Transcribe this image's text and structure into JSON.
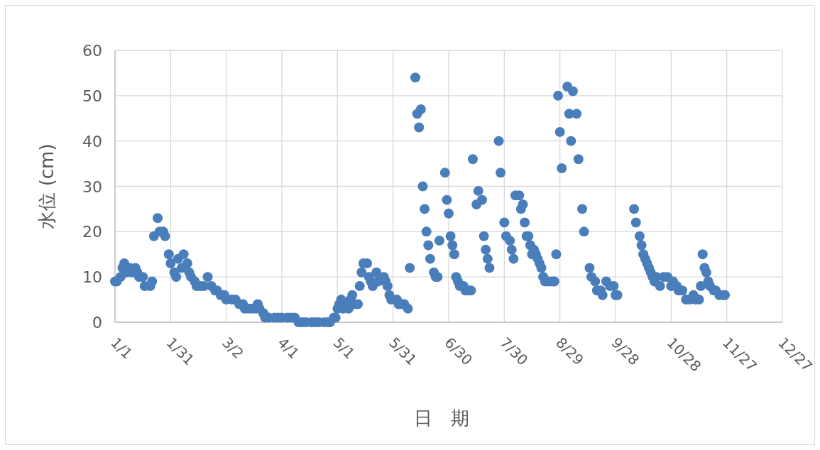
{
  "chart_data": {
    "type": "scatter",
    "xlabel": "日　期",
    "ylabel": "水位 (cm)",
    "marker": "circle",
    "grid": true,
    "xlim": [
      "--01-01",
      "--12-27"
    ],
    "xticks": [
      {
        "value": "--01-01",
        "label": "1/1"
      },
      {
        "value": "--01-31",
        "label": "1/31"
      },
      {
        "value": "--03-02",
        "label": "3/2"
      },
      {
        "value": "--04-01",
        "label": "4/1"
      },
      {
        "value": "--05-01",
        "label": "5/1"
      },
      {
        "value": "--05-31",
        "label": "5/31"
      },
      {
        "value": "--06-30",
        "label": "6/30"
      },
      {
        "value": "--07-30",
        "label": "7/30"
      },
      {
        "value": "--08-29",
        "label": "8/29"
      },
      {
        "value": "--09-28",
        "label": "9/28"
      },
      {
        "value": "--10-28",
        "label": "10/28"
      },
      {
        "value": "--11-27",
        "label": "11/27"
      },
      {
        "value": "--12-27",
        "label": "12/27"
      }
    ],
    "ylim": [
      0,
      60
    ],
    "yticks": [
      0,
      10,
      20,
      30,
      40,
      50,
      60
    ],
    "series": [
      {
        "color": "#4a7ebb",
        "x": [
          "--01-01",
          "--01-02",
          "--01-04",
          "--01-05",
          "--01-06",
          "--01-07",
          "--01-09",
          "--01-10",
          "--01-12",
          "--01-13",
          "--01-14",
          "--01-16",
          "--01-17",
          "--01-20",
          "--01-21",
          "--01-22",
          "--01-24",
          "--01-25",
          "--01-27",
          "--01-28",
          "--01-30",
          "--01-31",
          "--02-02",
          "--02-03",
          "--02-04",
          "--02-06",
          "--02-07",
          "--02-09",
          "--02-10",
          "--02-11",
          "--02-13",
          "--02-14",
          "--02-16",
          "--02-18",
          "--02-20",
          "--02-22",
          "--02-24",
          "--02-25",
          "--02-27",
          "--03-01",
          "--03-02",
          "--03-05",
          "--03-07",
          "--03-09",
          "--03-11",
          "--03-12",
          "--03-14",
          "--03-16",
          "--03-18",
          "--03-19",
          "--03-20",
          "--03-22",
          "--03-23",
          "--03-25",
          "--03-28",
          "--03-30",
          "--04-01",
          "--04-04",
          "--04-06",
          "--04-08",
          "--04-10",
          "--04-12",
          "--04-14",
          "--04-17",
          "--04-19",
          "--04-21",
          "--04-24",
          "--04-26",
          "--04-27",
          "--04-29",
          "--04-30",
          "--05-01",
          "--05-02",
          "--05-03",
          "--05-04",
          "--05-06",
          "--05-07",
          "--05-08",
          "--05-09",
          "--05-10",
          "--05-12",
          "--05-13",
          "--05-14",
          "--05-15",
          "--05-17",
          "--05-18",
          "--05-19",
          "--05-20",
          "--05-22",
          "--05-23",
          "--05-26",
          "--05-27",
          "--05-28",
          "--05-29",
          "--05-30",
          "--06-02",
          "--06-03",
          "--06-05",
          "--06-06",
          "--06-08",
          "--06-09",
          "--06-12",
          "--06-13",
          "--06-14",
          "--06-15",
          "--06-16",
          "--06-17",
          "--06-18",
          "--06-19",
          "--06-20",
          "--06-22",
          "--06-23",
          "--06-24",
          "--06-25",
          "--06-28",
          "--06-29",
          "--06-30",
          "--07-01",
          "--07-02",
          "--07-03",
          "--07-04",
          "--07-05",
          "--07-06",
          "--07-08",
          "--07-09",
          "--07-11",
          "--07-12",
          "--07-13",
          "--07-15",
          "--07-16",
          "--07-18",
          "--07-19",
          "--07-20",
          "--07-21",
          "--07-22",
          "--07-27",
          "--07-28",
          "--07-30",
          "--07-31",
          "--08-02",
          "--08-03",
          "--08-04",
          "--08-05",
          "--08-07",
          "--08-08",
          "--08-09",
          "--08-10",
          "--08-11",
          "--08-12",
          "--08-13",
          "--08-14",
          "--08-15",
          "--08-16",
          "--08-17",
          "--08-18",
          "--08-19",
          "--08-20",
          "--08-21",
          "--08-23",
          "--08-25",
          "--08-26",
          "--08-27",
          "--08-28",
          "--08-29",
          "--08-30",
          "--09-02",
          "--09-03",
          "--09-04",
          "--09-05",
          "--09-07",
          "--09-08",
          "--09-10",
          "--09-11",
          "--09-14",
          "--09-15",
          "--09-17",
          "--09-18",
          "--09-20",
          "--09-21",
          "--09-23",
          "--09-25",
          "--09-27",
          "--09-28",
          "--09-29",
          "--10-08",
          "--10-09",
          "--10-11",
          "--10-12",
          "--10-13",
          "--10-14",
          "--10-15",
          "--10-16",
          "--10-17",
          "--10-18",
          "--10-19",
          "--10-20",
          "--10-22",
          "--10-24",
          "--10-26",
          "--10-28",
          "--10-29",
          "--10-31",
          "--11-01",
          "--11-03",
          "--11-05",
          "--11-07",
          "--11-09",
          "--11-10",
          "--11-12",
          "--11-13",
          "--11-14",
          "--11-15",
          "--11-16",
          "--11-17",
          "--11-18",
          "--11-20",
          "--11-21",
          "--11-23",
          "--11-25",
          "--11-26"
        ],
        "values": [
          9,
          9,
          10,
          12,
          13,
          11,
          12,
          11,
          12,
          11,
          10,
          10,
          8,
          8,
          9,
          19,
          23,
          20,
          20,
          19,
          15,
          13,
          11,
          10,
          14,
          12,
          15,
          13,
          11,
          10,
          9,
          8,
          8,
          8,
          10,
          8,
          7,
          7,
          6,
          6,
          5,
          5,
          5,
          4,
          4,
          3,
          3,
          3,
          3,
          4,
          3,
          2,
          1,
          1,
          1,
          1,
          1,
          1,
          1,
          1,
          0,
          0,
          0,
          0,
          0,
          0,
          0,
          0,
          0,
          1,
          1,
          3,
          4,
          5,
          3,
          4,
          3,
          5,
          6,
          4,
          4,
          8,
          11,
          13,
          13,
          10,
          9,
          8,
          11,
          9,
          10,
          9,
          8,
          6,
          5,
          5,
          4,
          4,
          4,
          3,
          12,
          54,
          46,
          43,
          47,
          30,
          25,
          20,
          17,
          14,
          11,
          10,
          10,
          18,
          33,
          27,
          24,
          19,
          17,
          15,
          10,
          9,
          8,
          8,
          7,
          7,
          7,
          36,
          26,
          29,
          27,
          19,
          16,
          14,
          12,
          40,
          33,
          22,
          19,
          18,
          16,
          14,
          28,
          28,
          25,
          26,
          22,
          19,
          19,
          17,
          15,
          16,
          15,
          14,
          13,
          12,
          10,
          9,
          9,
          9,
          9,
          15,
          50,
          42,
          34,
          52,
          46,
          40,
          51,
          46,
          36,
          25,
          20,
          12,
          10,
          9,
          7,
          7,
          6,
          9,
          8,
          8,
          6,
          6,
          25,
          22,
          19,
          17,
          15,
          14,
          13,
          12,
          11,
          10,
          9,
          10,
          8,
          10,
          10,
          8,
          9,
          8,
          7,
          7,
          5,
          5,
          6,
          5,
          5,
          8,
          15,
          12,
          11,
          9,
          8,
          7,
          7,
          6,
          6,
          6
        ]
      }
    ]
  }
}
